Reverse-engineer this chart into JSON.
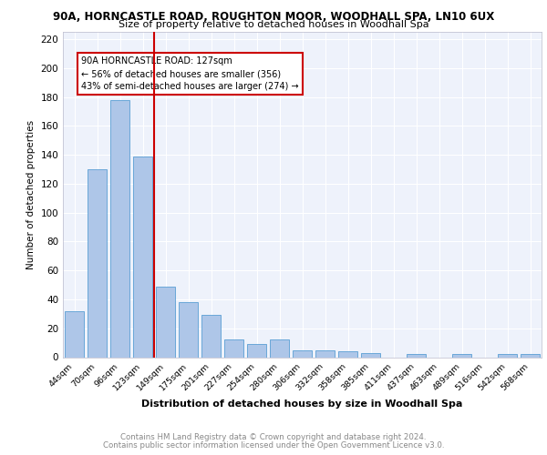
{
  "title1": "90A, HORNCASTLE ROAD, ROUGHTON MOOR, WOODHALL SPA, LN10 6UX",
  "title2": "Size of property relative to detached houses in Woodhall Spa",
  "xlabel": "Distribution of detached houses by size in Woodhall Spa",
  "ylabel": "Number of detached properties",
  "categories": [
    "44sqm",
    "70sqm",
    "96sqm",
    "123sqm",
    "149sqm",
    "175sqm",
    "201sqm",
    "227sqm",
    "254sqm",
    "280sqm",
    "306sqm",
    "332sqm",
    "358sqm",
    "385sqm",
    "411sqm",
    "437sqm",
    "463sqm",
    "489sqm",
    "516sqm",
    "542sqm",
    "568sqm"
  ],
  "values": [
    32,
    130,
    178,
    139,
    49,
    38,
    29,
    12,
    9,
    12,
    5,
    5,
    4,
    3,
    0,
    2,
    0,
    2,
    0,
    2,
    2
  ],
  "bar_color": "#aec6e8",
  "bar_edge_color": "#5a9fd4",
  "vline_x_index": 3,
  "vline_color": "#cc0000",
  "annotation_line1": "90A HORNCASTLE ROAD: 127sqm",
  "annotation_line2": "← 56% of detached houses are smaller (356)",
  "annotation_line3": "43% of semi-detached houses are larger (274) →",
  "annotation_box_color": "#cc0000",
  "ylim": [
    0,
    225
  ],
  "yticks": [
    0,
    20,
    40,
    60,
    80,
    100,
    120,
    140,
    160,
    180,
    200,
    220
  ],
  "footer1": "Contains HM Land Registry data © Crown copyright and database right 2024.",
  "footer2": "Contains public sector information licensed under the Open Government Licence v3.0.",
  "background_color": "#eef2fb",
  "grid_color": "#ffffff"
}
